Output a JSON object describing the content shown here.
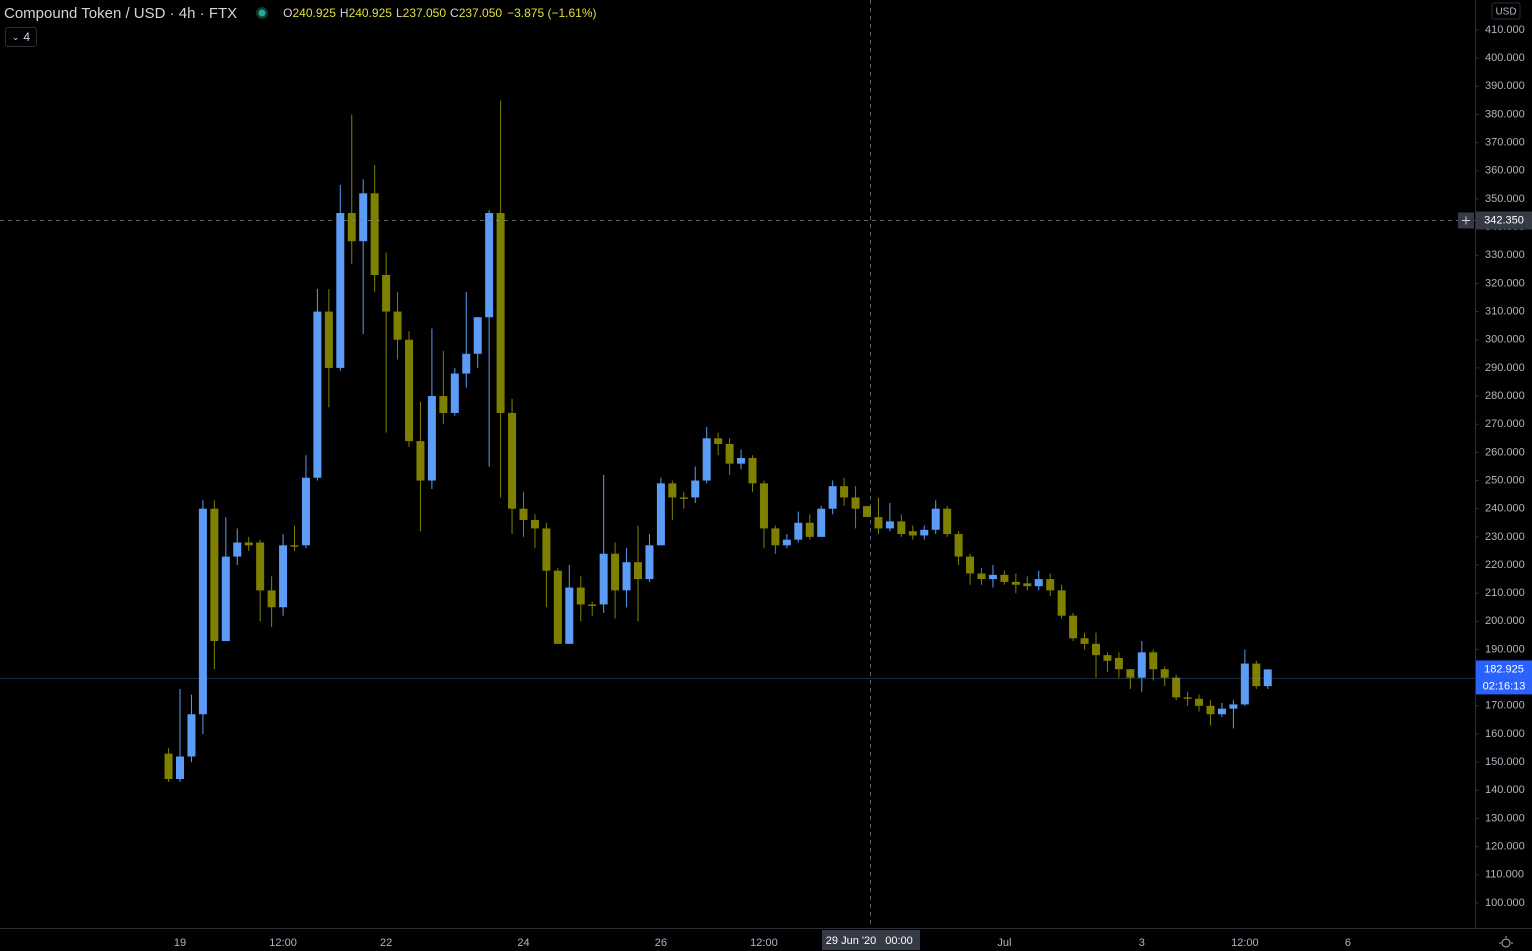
{
  "header": {
    "title": "Compound Token / USD · 4h · FTX",
    "ohlc": [
      {
        "label": "O",
        "value": "240.925"
      },
      {
        "label": "H",
        "value": "240.925"
      },
      {
        "label": "L",
        "value": "237.050"
      },
      {
        "label": "C",
        "value": "237.050"
      }
    ],
    "change": "−3.875 (−1.61%)",
    "indicator_count": "4",
    "currency": "USD"
  },
  "chart_data": {
    "type": "candlestick",
    "up_color": "#5b9cf6",
    "down_color": "#808000",
    "categories": [
      null,
      "19",
      null,
      null,
      null,
      null,
      null,
      null,
      null,
      null,
      "12:00",
      null,
      null,
      null,
      null,
      null,
      null,
      null,
      null,
      "22",
      null,
      null,
      null,
      null,
      null,
      null,
      null,
      null,
      null,
      null,
      null,
      "24",
      null,
      null,
      null,
      null,
      null,
      null,
      null,
      null,
      null,
      null,
      null,
      "26",
      null,
      null,
      null,
      null,
      null,
      null,
      null,
      null,
      "12:00",
      null,
      null,
      null,
      null,
      null,
      null,
      null,
      null,
      null,
      null,
      null,
      null,
      null,
      null,
      null,
      null,
      null,
      null,
      null,
      null,
      "Jul",
      null,
      null,
      null,
      null,
      null,
      null,
      null,
      null,
      null,
      null,
      null,
      "3",
      null,
      null,
      null,
      null,
      null,
      null,
      null,
      null,
      "12:00",
      null,
      null,
      null,
      null,
      null,
      null,
      null,
      null,
      "6"
    ],
    "open": [
      153,
      144,
      152,
      167,
      240,
      193,
      223,
      228,
      228,
      211,
      205,
      227,
      227,
      251,
      310,
      290,
      345,
      335,
      352,
      323,
      310,
      300,
      264,
      250,
      280,
      274,
      288,
      295,
      308,
      345,
      274,
      240,
      236,
      233,
      218,
      192,
      212,
      206,
      206,
      224,
      211,
      221,
      215,
      227,
      249,
      244,
      244,
      250,
      265,
      263,
      256,
      258,
      249,
      233,
      227,
      229,
      235,
      230,
      240,
      248,
      244,
      240.925,
      237,
      233,
      235.5,
      232,
      230.5,
      232.5,
      240,
      231,
      223,
      217,
      215,
      216.5,
      214,
      213.5,
      212.5,
      215,
      211,
      202,
      194,
      192,
      188,
      187,
      183,
      180,
      189,
      183,
      180,
      173,
      172.5,
      170,
      167,
      169,
      170.5,
      185,
      177,
      null,
      null,
      null,
      null,
      null,
      null,
      null
    ],
    "high": [
      155,
      176,
      174,
      243,
      243,
      237,
      233,
      230,
      229,
      216,
      231,
      234,
      259,
      318,
      318,
      355,
      380,
      357,
      362,
      331,
      317,
      303,
      278,
      304,
      296,
      290,
      317,
      308,
      346,
      385,
      279,
      246,
      238,
      235,
      219,
      220,
      216,
      207,
      252,
      228,
      226,
      234,
      231,
      251,
      250,
      246,
      255,
      269,
      267,
      265,
      261,
      259,
      250,
      234,
      231,
      239,
      238,
      241,
      250,
      251,
      248,
      240.925,
      244,
      242,
      238,
      234,
      234,
      243,
      241,
      232,
      224,
      219,
      220,
      218,
      217,
      216,
      218,
      217,
      213,
      203,
      196,
      196,
      189,
      189,
      183,
      193,
      190,
      184,
      181,
      175,
      174,
      172,
      171,
      172,
      190,
      186,
      183,
      null,
      null,
      null,
      null,
      null,
      null,
      null
    ],
    "low": [
      143,
      143,
      150,
      160,
      183,
      193,
      220,
      225,
      200,
      198,
      202,
      225,
      226,
      250,
      276,
      289,
      327,
      302,
      317,
      267,
      293,
      262,
      232,
      247,
      270,
      273,
      283,
      290,
      255,
      244,
      231,
      230,
      226,
      205,
      192,
      192,
      200,
      202,
      203,
      201,
      205,
      200,
      214,
      227,
      236,
      240,
      242,
      249,
      259,
      252,
      254,
      246,
      226,
      224,
      226,
      228,
      229,
      230,
      238,
      241,
      233,
      237.05,
      231,
      232,
      230,
      229,
      229,
      231,
      230,
      220,
      213,
      213,
      212,
      213,
      210,
      211,
      211,
      209,
      201,
      193,
      190,
      180,
      182,
      180,
      176,
      175,
      179,
      177,
      172,
      170,
      168,
      163,
      166,
      162,
      170,
      176,
      176,
      null,
      null,
      null,
      null,
      null,
      null,
      null
    ],
    "close": [
      144,
      152,
      167,
      240,
      193,
      223,
      228,
      227,
      211,
      205,
      227,
      226.5,
      251,
      310,
      290,
      345,
      335,
      352,
      323,
      310,
      300,
      264,
      250,
      280,
      274,
      288,
      295,
      308,
      345,
      274,
      240,
      236,
      233,
      218,
      192,
      212,
      206,
      205.5,
      224,
      211,
      221,
      215,
      227,
      249,
      244,
      243.5,
      250,
      265,
      263,
      256,
      258,
      249,
      233,
      227,
      229,
      235,
      230,
      240,
      248,
      244,
      240,
      237.05,
      233,
      235.5,
      231,
      230.5,
      232.5,
      240,
      231,
      223,
      217,
      215,
      216.5,
      214,
      213,
      212.5,
      215,
      211,
      202,
      194,
      192,
      188,
      186,
      183,
      180,
      189,
      183,
      180,
      173,
      172.5,
      170,
      167,
      169,
      170.5,
      185,
      177,
      182.925,
      null,
      null,
      null,
      null,
      null,
      null,
      null
    ],
    "ylim": [
      91.1,
      420.65
    ],
    "yticks": [
      {
        "value": 100,
        "label": "100.000"
      },
      {
        "value": 110,
        "label": "110.000"
      },
      {
        "value": 120,
        "label": "120.000"
      },
      {
        "value": 130,
        "label": "130.000"
      },
      {
        "value": 140,
        "label": "140.000"
      },
      {
        "value": 150,
        "label": "150.000"
      },
      {
        "value": 160,
        "label": "160.000"
      },
      {
        "value": 170,
        "label": "170.000"
      },
      {
        "value": 180,
        "label": "180.000"
      },
      {
        "value": 190,
        "label": "190.000"
      },
      {
        "value": 200,
        "label": "200.000"
      },
      {
        "value": 210,
        "label": "210.000"
      },
      {
        "value": 220,
        "label": "220.000"
      },
      {
        "value": 230,
        "label": "230.000"
      },
      {
        "value": 240,
        "label": "240.000"
      },
      {
        "value": 250,
        "label": "250.000"
      },
      {
        "value": 260,
        "label": "260.000"
      },
      {
        "value": 270,
        "label": "270.000"
      },
      {
        "value": 280,
        "label": "280.000"
      },
      {
        "value": 290,
        "label": "290.000"
      },
      {
        "value": 300,
        "label": "300.000"
      },
      {
        "value": 310,
        "label": "310.000"
      },
      {
        "value": 320,
        "label": "320.000"
      },
      {
        "value": 330,
        "label": "330.000"
      },
      {
        "value": 340,
        "label": "340.000"
      },
      {
        "value": 350,
        "label": "350.000"
      },
      {
        "value": 360,
        "label": "360.000"
      },
      {
        "value": 370,
        "label": "370.000"
      },
      {
        "value": 380,
        "label": "380.000"
      },
      {
        "value": 390,
        "label": "390.000"
      },
      {
        "value": 400,
        "label": "400.000"
      },
      {
        "value": 410,
        "label": "410.000"
      }
    ],
    "crosshair": {
      "date": "29 Jun '20",
      "time": "00:00",
      "price": {
        "value": 342.35,
        "label": "342.350"
      }
    },
    "last_price": {
      "value": 182.925,
      "label": "182.925"
    },
    "countdown": "02:16:13"
  }
}
